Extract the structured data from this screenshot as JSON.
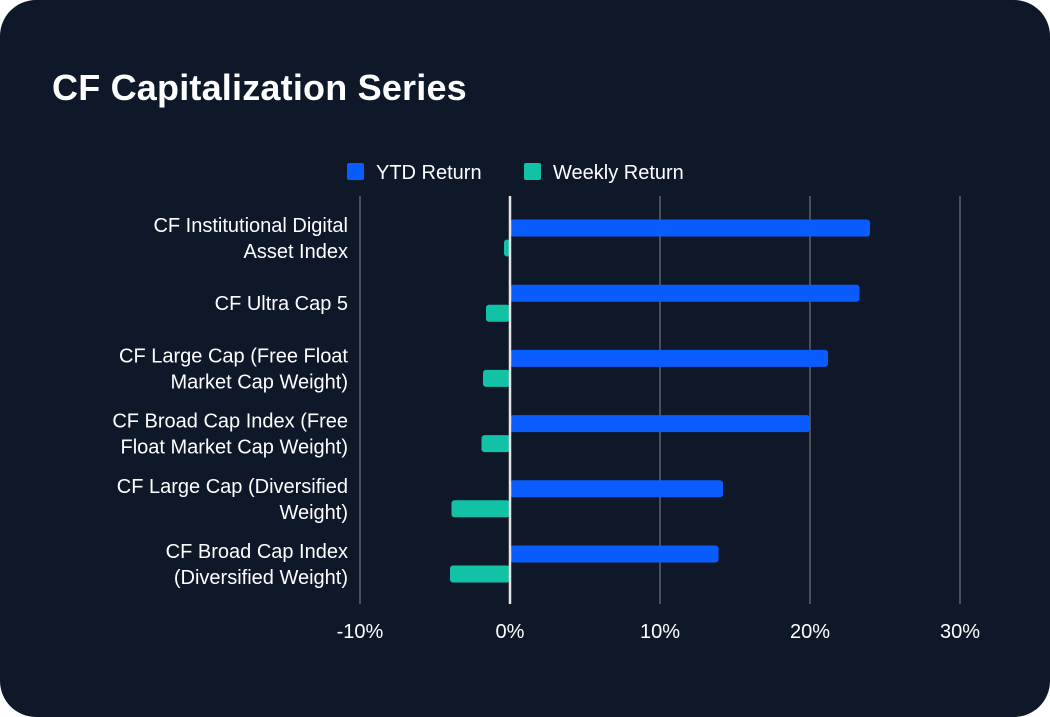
{
  "header": {
    "title": "CF Capitalization Series"
  },
  "colors": {
    "background": "#0f1829",
    "ytd": "#0a5cff",
    "weekly": "#12c2a7",
    "grid": "#4a4f5a",
    "zero_line": "#e6e6e6",
    "text": "#ffffff"
  },
  "chart_data": {
    "type": "bar",
    "orientation": "horizontal",
    "title": "CF Capitalization Series",
    "xlabel": "",
    "ylabel": "",
    "xlim": [
      -10,
      30
    ],
    "x_ticks": [
      -10,
      0,
      10,
      20,
      30
    ],
    "x_tick_labels": [
      "-10%",
      "0%",
      "10%",
      "20%",
      "30%"
    ],
    "grid": "vertical",
    "legend": "top-center",
    "categories": [
      [
        "CF Institutional Digital",
        "Asset Index"
      ],
      [
        "CF Ultra Cap 5"
      ],
      [
        "CF Large Cap (Free Float",
        "Market Cap Weight)"
      ],
      [
        "CF Broad Cap Index (Free",
        "Float Market Cap Weight)"
      ],
      [
        "CF Large Cap (Diversified",
        "Weight)"
      ],
      [
        "CF Broad Cap Index",
        "(Diversified Weight)"
      ]
    ],
    "series": [
      {
        "name": "YTD Return",
        "color": "#0a5cff",
        "values": [
          24.0,
          23.3,
          21.2,
          20.0,
          14.2,
          13.9
        ]
      },
      {
        "name": "Weekly Return",
        "color": "#12c2a7",
        "values": [
          -0.4,
          -1.6,
          -1.8,
          -1.9,
          -3.9,
          -4.0
        ]
      }
    ]
  }
}
